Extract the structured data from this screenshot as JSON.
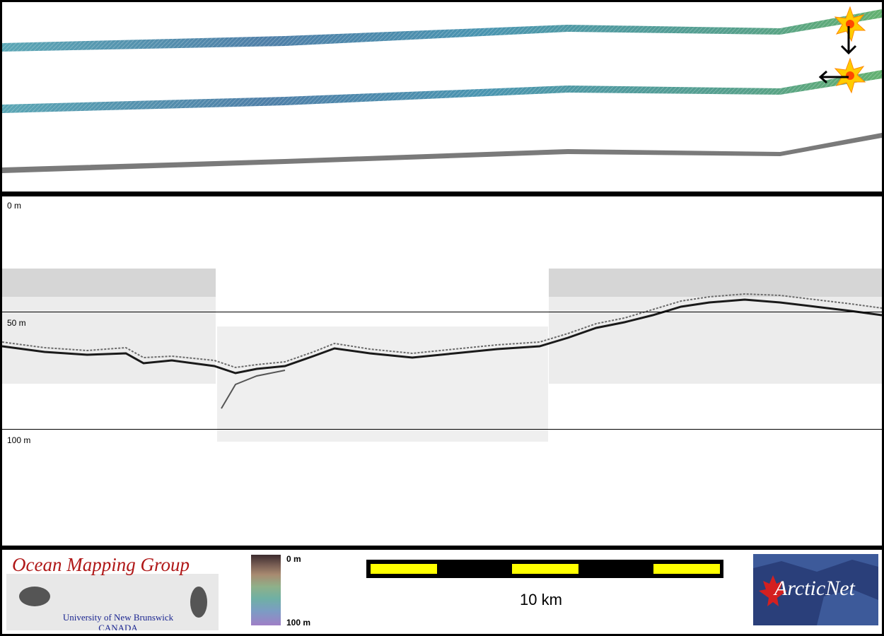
{
  "profile": {
    "depth_labels": [
      "0 m",
      "50 m",
      "100 m"
    ]
  },
  "legend": {
    "color_top": "0 m",
    "color_bottom": "100 m"
  },
  "scale_bar": {
    "label": "10 km"
  },
  "logos": {
    "omg_title": "Ocean Mapping Group",
    "omg_line1": "University of New Brunswick",
    "omg_line2": "CANADA",
    "arcticnet": "ArcticNet"
  },
  "colors": {
    "frame": "#000000",
    "scale_fill": "#ffff00",
    "marker": "#ffcc00",
    "omg_red": "#b01818",
    "omg_blue": "#1a2590"
  }
}
